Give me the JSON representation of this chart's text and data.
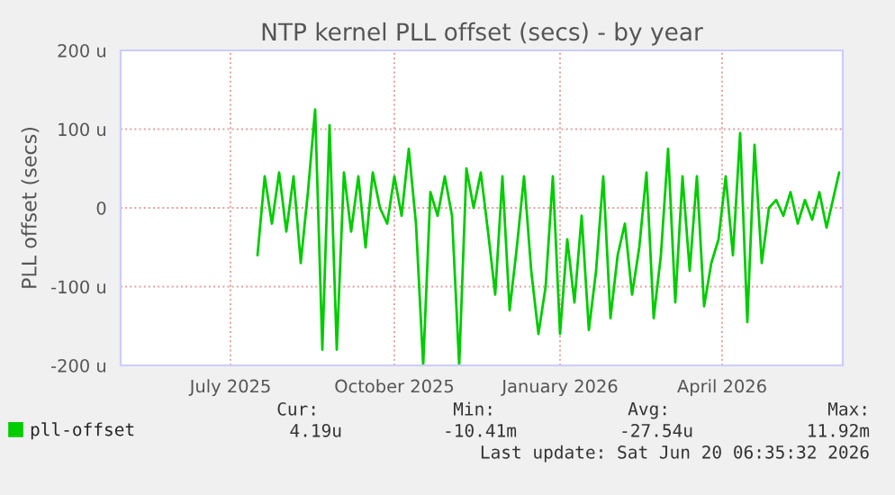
{
  "chart_data": {
    "type": "line",
    "title": "NTP kernel PLL offset (secs) - by year",
    "ylabel": "PLL offset (secs)",
    "xlim": [
      "2025-05-16",
      "2026-06-21"
    ],
    "xticks": [
      {
        "value": "2025-07-16",
        "label": "July 2025"
      },
      {
        "value": "2025-10-15",
        "label": "October 2025"
      },
      {
        "value": "2026-01-15",
        "label": "January 2026"
      },
      {
        "value": "2026-04-15",
        "label": "April 2026"
      }
    ],
    "ylim": [
      -200,
      200
    ],
    "yticks": [
      {
        "value": -200,
        "label": "-200 u"
      },
      {
        "value": -100,
        "label": "-100 u"
      },
      0,
      {
        "value": 100,
        "label": "100 u"
      },
      {
        "value": 200,
        "label": "200 u"
      }
    ],
    "grid": true,
    "legend": "bottom left",
    "marker": "none",
    "line_style": "solid",
    "annotations": [
      "Cur:",
      "4.19u",
      "Min:",
      "-10.41m",
      "Avg:",
      "-27.54u",
      "Max:",
      "11.92m",
      "Last update: Sat Jun 20 06:35:32 2026"
    ],
    "series": [
      {
        "name": "pll-offset",
        "color": "#00cc00",
        "x": [
          "2025-07-31",
          "2025-08-04",
          "2025-08-08",
          "2025-08-12",
          "2025-08-16",
          "2025-08-20",
          "2025-08-24",
          "2025-08-28",
          "2025-09-01",
          "2025-09-05",
          "2025-09-09",
          "2025-09-13",
          "2025-09-17",
          "2025-09-21",
          "2025-09-25",
          "2025-09-29",
          "2025-10-03",
          "2025-10-07",
          "2025-10-11",
          "2025-10-15",
          "2025-10-19",
          "2025-10-23",
          "2025-10-27",
          "2025-10-31",
          "2025-11-04",
          "2025-11-08",
          "2025-11-12",
          "2025-11-16",
          "2025-11-20",
          "2025-11-24",
          "2025-11-28",
          "2025-12-02",
          "2025-12-06",
          "2025-12-10",
          "2025-12-14",
          "2025-12-18",
          "2025-12-22",
          "2025-12-26",
          "2025-12-30",
          "2026-01-03",
          "2026-01-07",
          "2026-01-11",
          "2026-01-15",
          "2026-01-19",
          "2026-01-23",
          "2026-01-27",
          "2026-01-31",
          "2026-02-04",
          "2026-02-08",
          "2026-02-12",
          "2026-02-16",
          "2026-02-20",
          "2026-02-24",
          "2026-02-28",
          "2026-03-04",
          "2026-03-08",
          "2026-03-12",
          "2026-03-16",
          "2026-03-20",
          "2026-03-24",
          "2026-03-28",
          "2026-04-01",
          "2026-04-05",
          "2026-04-09",
          "2026-04-13",
          "2026-04-17",
          "2026-04-21",
          "2026-04-25",
          "2026-04-29",
          "2026-05-03",
          "2026-05-07",
          "2026-05-11",
          "2026-05-15",
          "2026-05-19",
          "2026-05-23",
          "2026-05-27",
          "2026-05-31",
          "2026-06-04",
          "2026-06-08",
          "2026-06-12",
          "2026-06-16",
          "2026-06-19"
        ],
        "values": [
          -60,
          40,
          -20,
          45,
          -30,
          40,
          -70,
          20,
          125,
          -180,
          105,
          -180,
          45,
          -30,
          40,
          -50,
          45,
          0,
          -20,
          40,
          -10,
          75,
          -20,
          -200,
          20,
          -10,
          40,
          -10,
          -200,
          50,
          0,
          45,
          -30,
          -110,
          40,
          -130,
          -50,
          40,
          -80,
          -160,
          -100,
          40,
          -160,
          -40,
          -120,
          -10,
          -155,
          -80,
          40,
          -140,
          -60,
          -20,
          -110,
          -50,
          45,
          -140,
          -60,
          75,
          -120,
          40,
          -80,
          40,
          -125,
          -70,
          -40,
          40,
          -60,
          95,
          -145,
          80,
          -70,
          0,
          10,
          -10,
          20,
          -20,
          10,
          -15,
          20,
          -25,
          15,
          45
        ]
      }
    ]
  }
}
